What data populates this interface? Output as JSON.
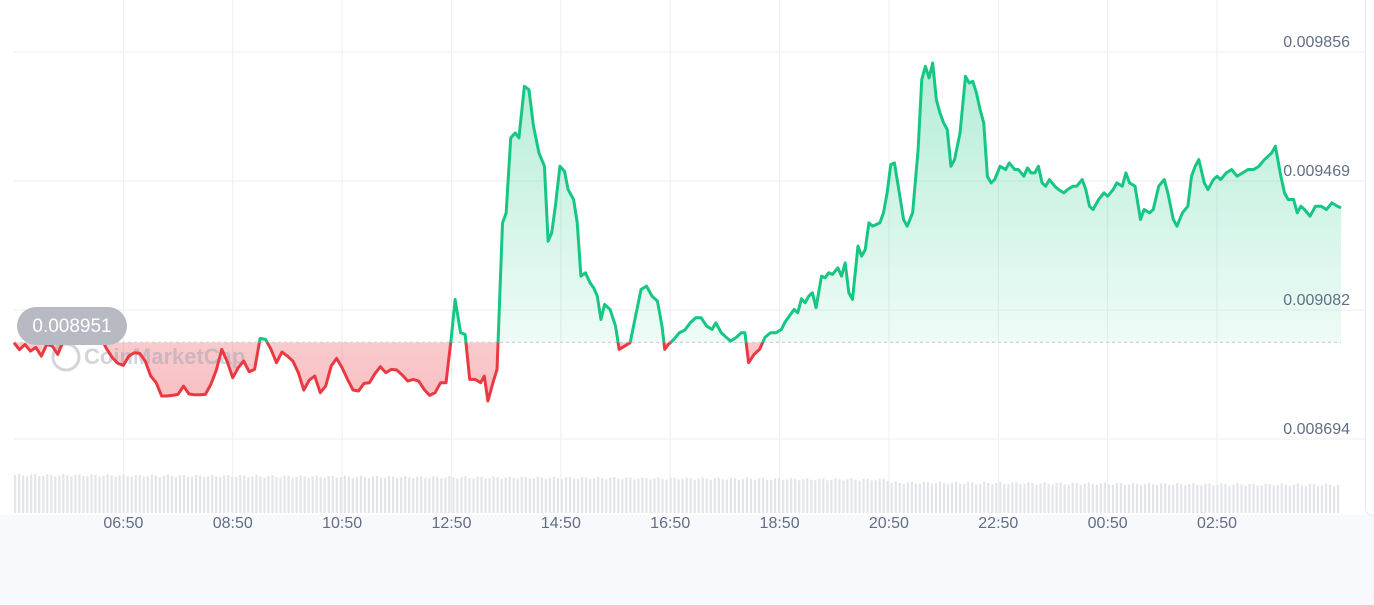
{
  "chart_data": {
    "type": "area",
    "title": "",
    "xlabel": "",
    "ylabel": "",
    "x_ticks": [
      "06:50",
      "08:50",
      "10:50",
      "12:50",
      "14:50",
      "16:50",
      "18:50",
      "20:50",
      "22:50",
      "00:50",
      "02:50"
    ],
    "y_ticks": [
      "0.009856",
      "0.009469",
      "0.009082",
      "0.008694"
    ],
    "ylim": [
      0.00855,
      0.00999
    ],
    "xlim_minutes": [
      290,
      1746
    ],
    "x_tick_minutes": [
      410,
      530,
      650,
      770,
      890,
      1010,
      1130,
      1250,
      1370,
      1490,
      1610
    ],
    "baseline": 0.008951,
    "baseline_label": "0.008951",
    "watermark": "CoinMarketCap",
    "grid": true,
    "colors": {
      "up_line": "#16c784",
      "down_line": "#ea3943",
      "up_fill": "#16c784",
      "down_fill": "#ea3943",
      "grid": "#eceef3",
      "baseline": "#cfd3db",
      "label_bg": "#b7bac3",
      "tick_text": "#616e85",
      "volume": "#e3e5ea"
    },
    "series": [
      {
        "values": [
          [
            290,
            0.00895
          ],
          [
            296,
            0.008929
          ],
          [
            302,
            0.008945
          ],
          [
            308,
            0.008925
          ],
          [
            314,
            0.008936
          ],
          [
            320,
            0.00891
          ],
          [
            326,
            0.008945
          ],
          [
            332,
            0.00894
          ],
          [
            338,
            0.008915
          ],
          [
            344,
            0.008955
          ],
          [
            350,
            0.00899
          ],
          [
            356,
            0.00898
          ],
          [
            362,
            0.008975
          ],
          [
            368,
            0.008992
          ],
          [
            374,
            0.00896
          ],
          [
            380,
            0.00898
          ],
          [
            386,
            0.00896
          ],
          [
            392,
            0.00893
          ],
          [
            398,
            0.008905
          ],
          [
            404,
            0.008888
          ],
          [
            410,
            0.008882
          ],
          [
            416,
            0.00891
          ],
          [
            422,
            0.00892
          ],
          [
            428,
            0.008918
          ],
          [
            434,
            0.008895
          ],
          [
            440,
            0.00885
          ],
          [
            446,
            0.00883
          ],
          [
            452,
            0.00879
          ],
          [
            458,
            0.00879
          ],
          [
            464,
            0.008792
          ],
          [
            470,
            0.008795
          ],
          [
            476,
            0.00882
          ],
          [
            482,
            0.008796
          ],
          [
            488,
            0.008794
          ],
          [
            494,
            0.008794
          ],
          [
            500,
            0.008795
          ],
          [
            506,
            0.008825
          ],
          [
            512,
            0.008868
          ],
          [
            518,
            0.00893
          ],
          [
            524,
            0.008893
          ],
          [
            530,
            0.008845
          ],
          [
            536,
            0.008875
          ],
          [
            542,
            0.008895
          ],
          [
            548,
            0.008863
          ],
          [
            554,
            0.00887
          ],
          [
            560,
            0.008963
          ],
          [
            566,
            0.00896
          ],
          [
            572,
            0.00893
          ],
          [
            578,
            0.00889
          ],
          [
            584,
            0.008922
          ],
          [
            590,
            0.00891
          ],
          [
            596,
            0.008895
          ],
          [
            602,
            0.00886
          ],
          [
            608,
            0.008808
          ],
          [
            614,
            0.008838
          ],
          [
            620,
            0.00885
          ],
          [
            626,
            0.0088
          ],
          [
            632,
            0.00882
          ],
          [
            638,
            0.00888
          ],
          [
            644,
            0.008903
          ],
          [
            650,
            0.008875
          ],
          [
            656,
            0.00884
          ],
          [
            662,
            0.008808
          ],
          [
            668,
            0.008805
          ],
          [
            674,
            0.008828
          ],
          [
            680,
            0.00883
          ],
          [
            686,
            0.008857
          ],
          [
            692,
            0.008878
          ],
          [
            698,
            0.00886
          ],
          [
            704,
            0.00887
          ],
          [
            710,
            0.008868
          ],
          [
            716,
            0.008853
          ],
          [
            722,
            0.008835
          ],
          [
            728,
            0.00884
          ],
          [
            734,
            0.008835
          ],
          [
            740,
            0.00881
          ],
          [
            746,
            0.008792
          ],
          [
            752,
            0.0088
          ],
          [
            758,
            0.00883
          ],
          [
            764,
            0.00883
          ],
          [
            770,
            0.00897
          ],
          [
            774,
            0.00908
          ],
          [
            780,
            0.00898
          ],
          [
            785,
            0.008975
          ],
          [
            790,
            0.00884
          ],
          [
            796,
            0.00884
          ],
          [
            802,
            0.00883
          ],
          [
            806,
            0.00885
          ],
          [
            810,
            0.008775
          ],
          [
            816,
            0.008835
          ],
          [
            820,
            0.00887
          ],
          [
            826,
            0.00931
          ],
          [
            830,
            0.00934
          ],
          [
            835,
            0.009565
          ],
          [
            840,
            0.00958
          ],
          [
            844,
            0.009565
          ],
          [
            850,
            0.00972
          ],
          [
            855,
            0.00971
          ],
          [
            860,
            0.0096
          ],
          [
            866,
            0.00952
          ],
          [
            872,
            0.00948
          ],
          [
            876,
            0.009255
          ],
          [
            880,
            0.00928
          ],
          [
            884,
            0.00936
          ],
          [
            889,
            0.00948
          ],
          [
            894,
            0.009465
          ],
          [
            898,
            0.00941
          ],
          [
            904,
            0.00938
          ],
          [
            908,
            0.00931
          ],
          [
            912,
            0.00915
          ],
          [
            917,
            0.00916
          ],
          [
            922,
            0.00913
          ],
          [
            926,
            0.009115
          ],
          [
            930,
            0.00909
          ],
          [
            934,
            0.00902
          ],
          [
            938,
            0.009065
          ],
          [
            944,
            0.00905
          ],
          [
            950,
            0.009
          ],
          [
            954,
            0.00893
          ],
          [
            960,
            0.00894
          ],
          [
            966,
            0.00895
          ],
          [
            972,
            0.00903
          ],
          [
            978,
            0.00911
          ],
          [
            984,
            0.00912
          ],
          [
            990,
            0.00909
          ],
          [
            996,
            0.009075
          ],
          [
            1001,
            0.009
          ],
          [
            1004,
            0.00893
          ],
          [
            1008,
            0.008945
          ],
          [
            1014,
            0.00896
          ],
          [
            1020,
            0.00898
          ],
          [
            1026,
            0.008988
          ],
          [
            1032,
            0.00901
          ],
          [
            1038,
            0.009025
          ],
          [
            1044,
            0.009025
          ],
          [
            1050,
            0.009
          ],
          [
            1056,
            0.00899
          ],
          [
            1060,
            0.00901
          ],
          [
            1066,
            0.00898
          ],
          [
            1070,
            0.00897
          ],
          [
            1076,
            0.008955
          ],
          [
            1082,
            0.008965
          ],
          [
            1088,
            0.00898
          ],
          [
            1092,
            0.00898
          ],
          [
            1096,
            0.00889
          ],
          [
            1102,
            0.008915
          ],
          [
            1108,
            0.00893
          ],
          [
            1114,
            0.008966
          ],
          [
            1120,
            0.00898
          ],
          [
            1126,
            0.00898
          ],
          [
            1132,
            0.00899
          ],
          [
            1136,
            0.009012
          ],
          [
            1142,
            0.009035
          ],
          [
            1146,
            0.00905
          ],
          [
            1150,
            0.00904
          ],
          [
            1154,
            0.009082
          ],
          [
            1158,
            0.00907
          ],
          [
            1162,
            0.00909
          ],
          [
            1166,
            0.0091
          ],
          [
            1170,
            0.009055
          ],
          [
            1176,
            0.00915
          ],
          [
            1180,
            0.009145
          ],
          [
            1184,
            0.00916
          ],
          [
            1188,
            0.009155
          ],
          [
            1194,
            0.009175
          ],
          [
            1198,
            0.00915
          ],
          [
            1202,
            0.00919
          ],
          [
            1206,
            0.0091
          ],
          [
            1210,
            0.00908
          ],
          [
            1216,
            0.00924
          ],
          [
            1220,
            0.00921
          ],
          [
            1224,
            0.00923
          ],
          [
            1228,
            0.00931
          ],
          [
            1232,
            0.0093
          ],
          [
            1236,
            0.009305
          ],
          [
            1240,
            0.00931
          ],
          [
            1244,
            0.00934
          ],
          [
            1248,
            0.0094
          ],
          [
            1252,
            0.009485
          ],
          [
            1256,
            0.00949
          ],
          [
            1262,
            0.00939
          ],
          [
            1266,
            0.00932
          ],
          [
            1270,
            0.0093
          ],
          [
            1276,
            0.00934
          ],
          [
            1282,
            0.00953
          ],
          [
            1286,
            0.00974
          ],
          [
            1290,
            0.00978
          ],
          [
            1294,
            0.009745
          ],
          [
            1298,
            0.00979
          ],
          [
            1302,
            0.00968
          ],
          [
            1306,
            0.00964
          ],
          [
            1310,
            0.00961
          ],
          [
            1314,
            0.00959
          ],
          [
            1318,
            0.00948
          ],
          [
            1322,
            0.0095
          ],
          [
            1328,
            0.00958
          ],
          [
            1334,
            0.00975
          ],
          [
            1338,
            0.00973
          ],
          [
            1342,
            0.009735
          ],
          [
            1346,
            0.0097
          ],
          [
            1350,
            0.00965
          ],
          [
            1354,
            0.00961
          ],
          [
            1358,
            0.00945
          ],
          [
            1362,
            0.00943
          ],
          [
            1366,
            0.00944
          ],
          [
            1372,
            0.00948
          ],
          [
            1378,
            0.00947
          ],
          [
            1382,
            0.00949
          ],
          [
            1388,
            0.00947
          ],
          [
            1392,
            0.00947
          ],
          [
            1398,
            0.00945
          ],
          [
            1402,
            0.009475
          ],
          [
            1406,
            0.00946
          ],
          [
            1410,
            0.00946
          ],
          [
            1414,
            0.00948
          ],
          [
            1418,
            0.00943
          ],
          [
            1422,
            0.00942
          ],
          [
            1426,
            0.00944
          ],
          [
            1432,
            0.00942
          ],
          [
            1436,
            0.00941
          ],
          [
            1442,
            0.0094
          ],
          [
            1446,
            0.00941
          ],
          [
            1452,
            0.00942
          ],
          [
            1456,
            0.00942
          ],
          [
            1462,
            0.00944
          ],
          [
            1466,
            0.00941
          ],
          [
            1470,
            0.00936
          ],
          [
            1474,
            0.00935
          ],
          [
            1480,
            0.00938
          ],
          [
            1486,
            0.0094
          ],
          [
            1490,
            0.00939
          ],
          [
            1496,
            0.00941
          ],
          [
            1500,
            0.00943
          ],
          [
            1506,
            0.00942
          ],
          [
            1510,
            0.00946
          ],
          [
            1514,
            0.00943
          ],
          [
            1520,
            0.00942
          ],
          [
            1526,
            0.00932
          ],
          [
            1530,
            0.00935
          ],
          [
            1536,
            0.00934
          ],
          [
            1540,
            0.00935
          ],
          [
            1546,
            0.00942
          ],
          [
            1552,
            0.00944
          ],
          [
            1556,
            0.0094
          ],
          [
            1562,
            0.00932
          ],
          [
            1566,
            0.0093
          ],
          [
            1572,
            0.00934
          ],
          [
            1578,
            0.00936
          ],
          [
            1582,
            0.00945
          ],
          [
            1586,
            0.00948
          ],
          [
            1590,
            0.0095
          ],
          [
            1596,
            0.00943
          ],
          [
            1600,
            0.00941
          ],
          [
            1606,
            0.00944
          ],
          [
            1610,
            0.00945
          ],
          [
            1614,
            0.00944
          ],
          [
            1620,
            0.00946
          ],
          [
            1626,
            0.00947
          ],
          [
            1632,
            0.00945
          ],
          [
            1638,
            0.00946
          ],
          [
            1644,
            0.00947
          ],
          [
            1650,
            0.00947
          ],
          [
            1656,
            0.00948
          ],
          [
            1662,
            0.0095
          ],
          [
            1666,
            0.00951
          ],
          [
            1670,
            0.00952
          ],
          [
            1674,
            0.00954
          ],
          [
            1680,
            0.00945
          ],
          [
            1684,
            0.0094
          ],
          [
            1688,
            0.00938
          ],
          [
            1694,
            0.00938
          ],
          [
            1698,
            0.00934
          ],
          [
            1702,
            0.00936
          ],
          [
            1706,
            0.00935
          ],
          [
            1712,
            0.00933
          ],
          [
            1718,
            0.00936
          ],
          [
            1724,
            0.00936
          ],
          [
            1730,
            0.00935
          ],
          [
            1736,
            0.00937
          ],
          [
            1742,
            0.00936
          ],
          [
            1746,
            0.009355
          ]
        ]
      }
    ]
  }
}
